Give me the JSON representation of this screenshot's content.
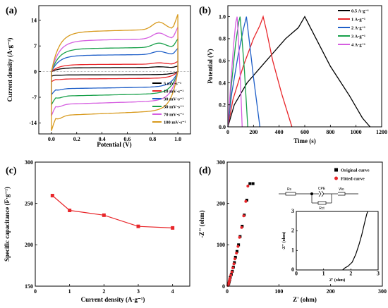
{
  "chart_data": [
    {
      "id": "a",
      "panel_label": "(a)",
      "type": "line",
      "xlabel": "Potential (V)",
      "ylabel": "Current density (A·g⁻¹)",
      "xlim": [
        -0.1,
        1.1
      ],
      "ylim": [
        -17,
        18
      ],
      "xticks": [
        0.0,
        0.2,
        0.4,
        0.6,
        0.8,
        1.0
      ],
      "xtick_labels": [
        "0.0",
        "0.2",
        "0.4",
        "0.6",
        "0.8",
        "1.0"
      ],
      "yticks": [
        -14,
        -7,
        0,
        7,
        14
      ],
      "ytick_labels": [
        "-14",
        "-7",
        "0",
        "7",
        "14"
      ],
      "legend_position": "lower-right",
      "series": [
        {
          "name": "5 mV·s⁻¹",
          "color": "#000000",
          "plateau_upper": 1.1,
          "plateau_lower": -0.9
        },
        {
          "name": "10 mV·s⁻¹",
          "color": "#e8262a",
          "plateau_upper": 2.0,
          "plateau_lower": -2.0
        },
        {
          "name": "30 mV·s⁻¹",
          "color": "#1f5fc8",
          "plateau_upper": 4.6,
          "plateau_lower": -4.6
        },
        {
          "name": "50 mV·s⁻¹",
          "color": "#18a04a",
          "plateau_upper": 6.5,
          "plateau_lower": -6.6
        },
        {
          "name": "70 mV·s⁻¹",
          "color": "#d55ee0",
          "plateau_upper": 8.8,
          "plateau_lower": -8.8
        },
        {
          "name": "100 mV·s⁻¹",
          "color": "#d89a1d",
          "plateau_upper": 11.3,
          "plateau_lower": -11.8
        }
      ]
    },
    {
      "id": "b",
      "panel_label": "(b)",
      "type": "line",
      "xlabel": "Time (s)",
      "ylabel": "Potential (V)",
      "xlim": [
        0,
        1200
      ],
      "ylim": [
        0,
        1.1
      ],
      "xticks": [
        0,
        200,
        400,
        600,
        800,
        1000,
        1200
      ],
      "xtick_labels": [
        "0",
        "200",
        "400",
        "600",
        "800",
        "1000",
        "1200"
      ],
      "yticks": [
        0.0,
        0.2,
        0.4,
        0.6,
        0.8,
        1.0
      ],
      "ytick_labels": [
        "0.0",
        "0.2",
        "0.4",
        "0.6",
        "0.8",
        "1.0"
      ],
      "legend_position": "top-right",
      "series": [
        {
          "name": "0.5 A·g⁻¹",
          "color": "#000000",
          "x": [
            0,
            50,
            150,
            300,
            450,
            550,
            600,
            680,
            800,
            950,
            1050,
            1110
          ],
          "y": [
            0.0,
            0.2,
            0.4,
            0.6,
            0.8,
            0.9,
            1.0,
            0.82,
            0.55,
            0.28,
            0.08,
            0.0
          ]
        },
        {
          "name": "1 A·g⁻¹",
          "color": "#e8262a",
          "x": [
            0,
            40,
            120,
            200,
            250,
            275,
            300,
            350,
            420,
            500
          ],
          "y": [
            0.0,
            0.25,
            0.55,
            0.8,
            0.92,
            1.0,
            0.88,
            0.6,
            0.3,
            0.0
          ]
        },
        {
          "name": "2 A·g⁻¹",
          "color": "#1f5fc8",
          "x": [
            0,
            30,
            80,
            120,
            145,
            165,
            200,
            250
          ],
          "y": [
            0.0,
            0.3,
            0.65,
            0.88,
            1.0,
            0.8,
            0.45,
            0.0
          ]
        },
        {
          "name": "3 A·g⁻¹",
          "color": "#18a04a",
          "x": [
            0,
            25,
            60,
            85,
            95,
            110,
            130,
            155
          ],
          "y": [
            0.0,
            0.35,
            0.75,
            0.95,
            1.0,
            0.8,
            0.5,
            0.0
          ]
        },
        {
          "name": "4 A·g⁻¹",
          "color": "#d55ee0",
          "x": [
            0,
            20,
            45,
            62,
            72,
            82,
            95,
            112
          ],
          "y": [
            0.0,
            0.35,
            0.75,
            0.95,
            1.0,
            0.8,
            0.5,
            0.0
          ]
        }
      ]
    },
    {
      "id": "c",
      "panel_label": "(c)",
      "type": "line",
      "xlabel": "Current density (A·g⁻¹)",
      "ylabel": "Specific capacitance (F·g⁻¹)",
      "xlim": [
        0,
        4.5
      ],
      "ylim": [
        150,
        300
      ],
      "xticks": [
        0,
        1,
        2,
        3,
        4
      ],
      "xtick_labels": [
        "0",
        "1",
        "2",
        "3",
        "4"
      ],
      "yticks": [
        150,
        200,
        250,
        300
      ],
      "ytick_labels": [
        "150",
        "200",
        "250",
        "300"
      ],
      "series": [
        {
          "name": "",
          "color": "#e8262a",
          "x": [
            0.5,
            1,
            2,
            3,
            4
          ],
          "y": [
            259.5,
            241.6,
            235.8,
            222.3,
            220.4
          ]
        }
      ]
    },
    {
      "id": "d",
      "panel_label": "(d)",
      "type": "scatter",
      "xlabel": "Z' (ohm)",
      "ylabel": "-Z'' (ohm)",
      "xlim": [
        0,
        300
      ],
      "ylim": [
        0,
        300
      ],
      "xticks": [
        0,
        100,
        200,
        300
      ],
      "xtick_labels": [
        "0",
        "100",
        "200",
        "300"
      ],
      "yticks": [
        0,
        100,
        200,
        300
      ],
      "ytick_labels": [
        "0",
        "100",
        "200",
        "300"
      ],
      "legend_position": "top-right",
      "series": [
        {
          "name": "Original curve",
          "color": "#000000",
          "marker": "square",
          "x": [
            2,
            3,
            4,
            5,
            6,
            8,
            10,
            12,
            14,
            16,
            19,
            22,
            25,
            29,
            33,
            38,
            44,
            50
          ],
          "y": [
            3,
            6,
            10,
            15,
            21,
            28,
            36,
            46,
            57,
            70,
            84,
            100,
            120,
            145,
            172,
            208,
            248,
            248
          ]
        },
        {
          "name": "Fitted curve",
          "color": "#e8262a",
          "marker": "circle",
          "x": [
            1.5,
            2.5,
            3.5,
            4.5,
            5.5,
            7,
            9,
            11,
            13,
            15,
            18,
            21,
            24,
            28,
            32,
            36,
            40
          ],
          "y": [
            2,
            5,
            9,
            14,
            19,
            26,
            34,
            44,
            54,
            66,
            80,
            96,
            118,
            142,
            170,
            205,
            242
          ]
        }
      ],
      "circuit_labels": {
        "rs": "Rs",
        "cpe": "CPE",
        "wo": "Wo",
        "rct": "Rct"
      },
      "inset": {
        "xlabel": "Z' (ohm)",
        "ylabel": "-Z'' (ohm)",
        "xlim": [
          0,
          3
        ],
        "ylim": [
          0,
          3
        ],
        "xticks": [
          0,
          1,
          2,
          3
        ],
        "xtick_labels": [
          "0",
          "1",
          "2",
          "3"
        ],
        "yticks": [
          0,
          1,
          2,
          3
        ],
        "ytick_labels": [
          "0",
          "1",
          "2",
          "3"
        ],
        "series": [
          {
            "name": "inset-curve",
            "color": "#000000",
            "x": [
              1.7,
              1.78,
              1.9,
              2.05,
              2.18,
              2.3,
              2.4,
              2.5,
              2.58,
              2.62
            ],
            "y": [
              0.0,
              0.1,
              0.2,
              0.4,
              0.8,
              1.3,
              1.8,
              2.4,
              2.85,
              3.0
            ]
          }
        ]
      }
    }
  ]
}
